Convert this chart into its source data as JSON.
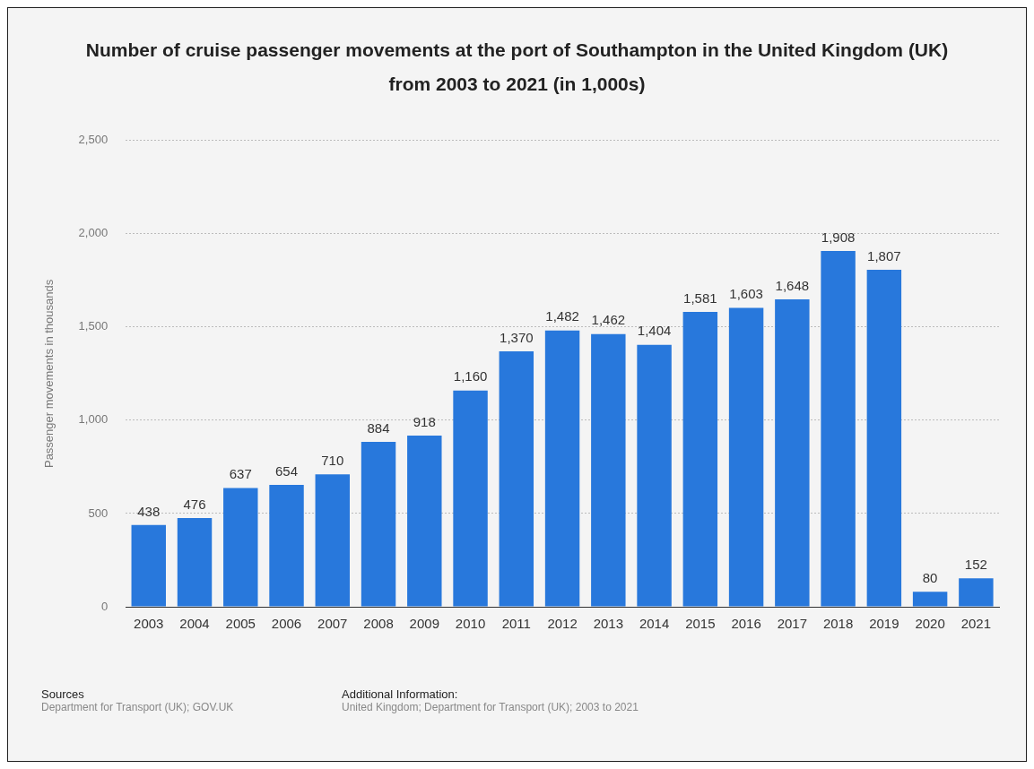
{
  "chart_data": {
    "type": "bar",
    "title": "Number of cruise passenger movements at the port of Southampton in the United Kingdom (UK) from 2003 to 2021 (in 1,000s)",
    "ylabel": "Passenger movements in thousands",
    "categories": [
      "2003",
      "2004",
      "2005",
      "2006",
      "2007",
      "2008",
      "2009",
      "2010",
      "2011",
      "2012",
      "2013",
      "2014",
      "2015",
      "2016",
      "2017",
      "2018",
      "2019",
      "2020",
      "2021"
    ],
    "values": [
      438,
      476,
      637,
      654,
      710,
      884,
      918,
      1160,
      1370,
      1482,
      1462,
      1404,
      1581,
      1603,
      1648,
      1908,
      1807,
      80,
      152
    ],
    "value_labels": [
      "438",
      "476",
      "637",
      "654",
      "710",
      "884",
      "918",
      "1,160",
      "1,370",
      "1,482",
      "1,462",
      "1,404",
      "1,581",
      "1,603",
      "1,648",
      "1,908",
      "1,807",
      "80",
      "152"
    ],
    "color": "#2878dc",
    "ylim": [
      0,
      2500
    ],
    "yticks": [
      0,
      {
        "value": 500,
        "label": "500"
      },
      {
        "value": 1000,
        "label": "1,000"
      },
      {
        "value": 1500,
        "label": "1,500"
      },
      {
        "value": 2000,
        "label": "2,000"
      },
      {
        "value": 2500,
        "label": "2,500"
      }
    ],
    "grid": "y",
    "legend": false,
    "annotations": [
      "Sources",
      "Department for Transport (UK); GOV.UK",
      "Additional Information:",
      "United Kingdom; Department for Transport (UK); 2003 to 2021"
    ]
  }
}
